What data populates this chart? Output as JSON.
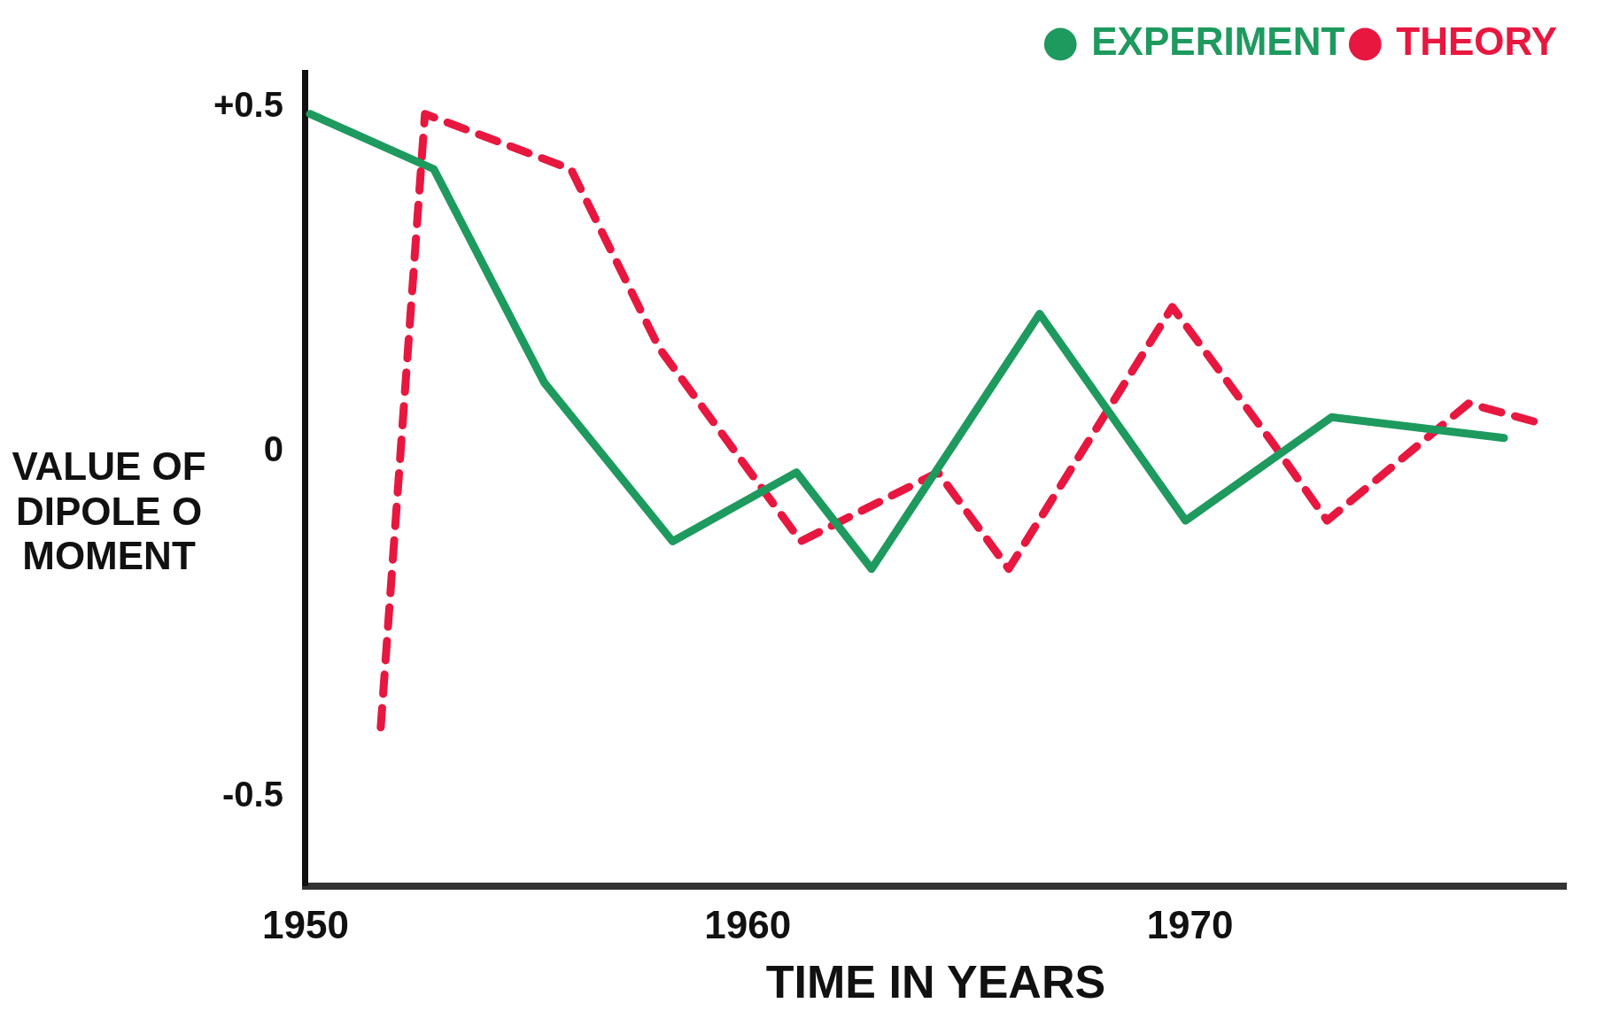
{
  "chart_data": {
    "type": "line",
    "xlabel": "TIME IN YEARS",
    "ylabel": "VALUE OF DIPOLE O MOMENT",
    "xlim": [
      1950,
      1978.5
    ],
    "xticks": [
      1950,
      1960,
      1970
    ],
    "ylim": [
      -0.63,
      0.55
    ],
    "yticks": [
      {
        "value": 0.5,
        "label": "+0.5"
      },
      0,
      -0.5
    ],
    "grid": false,
    "legend": "top right",
    "marker": "none",
    "series": [
      {
        "name": "EXPERIMENT",
        "color": "#1e9a5e",
        "line_style": "solid",
        "x": [
          1950.1,
          1952.9,
          1955.4,
          1958.3,
          1961.1,
          1962.8,
          1966.6,
          1969.9,
          1973.2,
          1977.1
        ],
        "values": [
          0.49,
          0.41,
          0.1,
          -0.13,
          -0.03,
          -0.17,
          0.2,
          -0.1,
          0.05,
          0.02
        ]
      },
      {
        "name": "THEORY",
        "color": "#e8173f",
        "line_style": "dashed",
        "x": [
          1951.7,
          1952.7,
          1956.0,
          1958.0,
          1961.2,
          1964.3,
          1965.9,
          1969.6,
          1971.9,
          1973.1,
          1976.3,
          1978.0
        ],
        "values": [
          -0.4,
          0.49,
          0.41,
          0.15,
          -0.13,
          -0.03,
          -0.17,
          0.21,
          0.01,
          -0.1,
          0.07,
          0.04
        ]
      }
    ]
  }
}
